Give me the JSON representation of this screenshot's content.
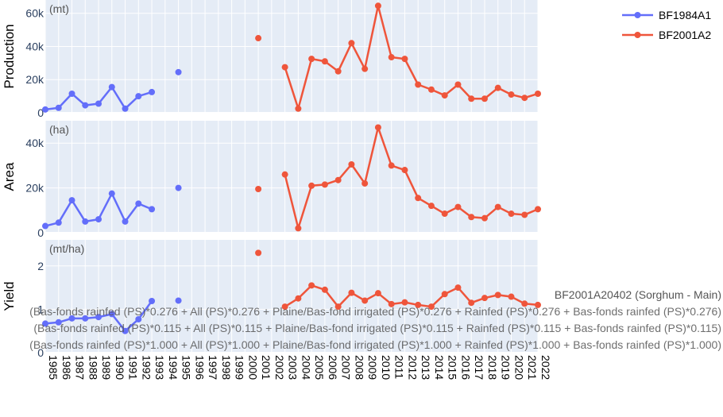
{
  "chart_data": {
    "type": "line",
    "legend_position": "top-right",
    "grid": true,
    "x": [
      1985,
      1986,
      1987,
      1988,
      1989,
      1990,
      1991,
      1992,
      1993,
      1994,
      1995,
      1996,
      1997,
      1998,
      1999,
      2000,
      2001,
      2002,
      2003,
      2004,
      2005,
      2006,
      2007,
      2008,
      2009,
      2010,
      2011,
      2012,
      2013,
      2014,
      2015,
      2016,
      2017,
      2018,
      2019,
      2020,
      2021,
      2022
    ],
    "xlim": [
      1985,
      2022
    ],
    "colors": {
      "BF1984A1": "#636efa",
      "BF2001A2": "#ef553b",
      "plot_bg": "#e5ecf6"
    },
    "series_names": [
      "BF1984A1",
      "BF2001A2"
    ],
    "panels": [
      {
        "ylabel": "Production",
        "unit": "(mt)",
        "ylim": [
          0,
          68000
        ],
        "yticks": [
          0,
          20000,
          40000,
          60000
        ],
        "yticklabels": [
          "0",
          "20k",
          "40k",
          "60k"
        ],
        "series": [
          {
            "name": "BF1984A1",
            "values": [
              2000,
              3000,
              11500,
              4500,
              5500,
              15500,
              2500,
              10000,
              12500,
              null,
              24500,
              null,
              null,
              null,
              null,
              null,
              null,
              null,
              null,
              null,
              null,
              null,
              null,
              null,
              null,
              null,
              null,
              null,
              null,
              null,
              null,
              null,
              null,
              null,
              null,
              null,
              null,
              null
            ]
          },
          {
            "name": "BF2001A2",
            "values": [
              null,
              null,
              null,
              null,
              null,
              null,
              null,
              null,
              null,
              null,
              null,
              null,
              null,
              null,
              null,
              null,
              45000,
              null,
              27500,
              2500,
              32500,
              31000,
              25000,
              42000,
              26500,
              64500,
              33500,
              32500,
              17000,
              14000,
              10500,
              17000,
              8500,
              8500,
              15000,
              11000,
              9000,
              11500
            ]
          }
        ]
      },
      {
        "ylabel": "Area",
        "unit": "(ha)",
        "ylim": [
          0,
          50000
        ],
        "yticks": [
          0,
          20000,
          40000
        ],
        "yticklabels": [
          "0",
          "20k",
          "40k"
        ],
        "series": [
          {
            "name": "BF1984A1",
            "values": [
              3000,
              4500,
              14500,
              5000,
              6000,
              17500,
              5000,
              13000,
              10500,
              null,
              20000,
              null,
              null,
              null,
              null,
              null,
              null,
              null,
              null,
              null,
              null,
              null,
              null,
              null,
              null,
              null,
              null,
              null,
              null,
              null,
              null,
              null,
              null,
              null,
              null,
              null,
              null,
              null
            ]
          },
          {
            "name": "BF2001A2",
            "values": [
              null,
              null,
              null,
              null,
              null,
              null,
              null,
              null,
              null,
              null,
              null,
              null,
              null,
              null,
              null,
              null,
              19500,
              null,
              26000,
              2000,
              21000,
              21500,
              23500,
              30500,
              22000,
              47000,
              30000,
              28000,
              15500,
              12000,
              8500,
              11500,
              7000,
              6500,
              11500,
              8500,
              8000,
              10500
            ]
          }
        ]
      },
      {
        "ylabel": "Yield",
        "unit": "(mt/ha)",
        "ylim": [
          0,
          2.6
        ],
        "yticks": [
          0,
          1,
          2
        ],
        "yticklabels": [
          "0",
          "1",
          "2"
        ],
        "series": [
          {
            "name": "BF1984A1",
            "values": [
              0.67,
              0.7,
              0.79,
              0.79,
              0.82,
              0.89,
              0.5,
              0.77,
              1.19,
              null,
              1.2,
              null,
              null,
              null,
              null,
              null,
              null,
              null,
              null,
              null,
              null,
              null,
              null,
              null,
              null,
              null,
              null,
              null,
              null,
              null,
              null,
              null,
              null,
              null,
              null,
              null,
              null,
              null
            ]
          },
          {
            "name": "BF2001A2",
            "values": [
              null,
              null,
              null,
              null,
              null,
              null,
              null,
              null,
              null,
              null,
              null,
              null,
              null,
              null,
              null,
              null,
              2.3,
              null,
              1.06,
              1.25,
              1.55,
              1.45,
              1.06,
              1.38,
              1.2,
              1.37,
              1.12,
              1.16,
              1.1,
              1.06,
              1.35,
              1.5,
              1.15,
              1.26,
              1.33,
              1.29,
              1.13,
              1.1
            ]
          }
        ]
      }
    ],
    "annotation_title": "BF2001A20402 (Sorghum - Main)",
    "annotation_lines": [
      "(Bas-fonds rainfed (PS)*0.276 + All (PS)*0.276 + Plaine/Bas-fond irrigated (PS)*0.276 + Rainfed (PS)*0.276 + Bas-fonds rainfed (PS)*0.276)",
      "(Bas-fonds rainfed (PS)*0.115 + All (PS)*0.115 + Plaine/Bas-fond irrigated (PS)*0.115 + Rainfed (PS)*0.115 + Bas-fonds rainfed (PS)*0.115)",
      "(Bas-fonds rainfed (PS)*1.000 + All (PS)*1.000 + Plaine/Bas-fond irrigated (PS)*1.000 + Rainfed (PS)*1.000 + Bas-fonds rainfed (PS)*1.000)"
    ]
  }
}
